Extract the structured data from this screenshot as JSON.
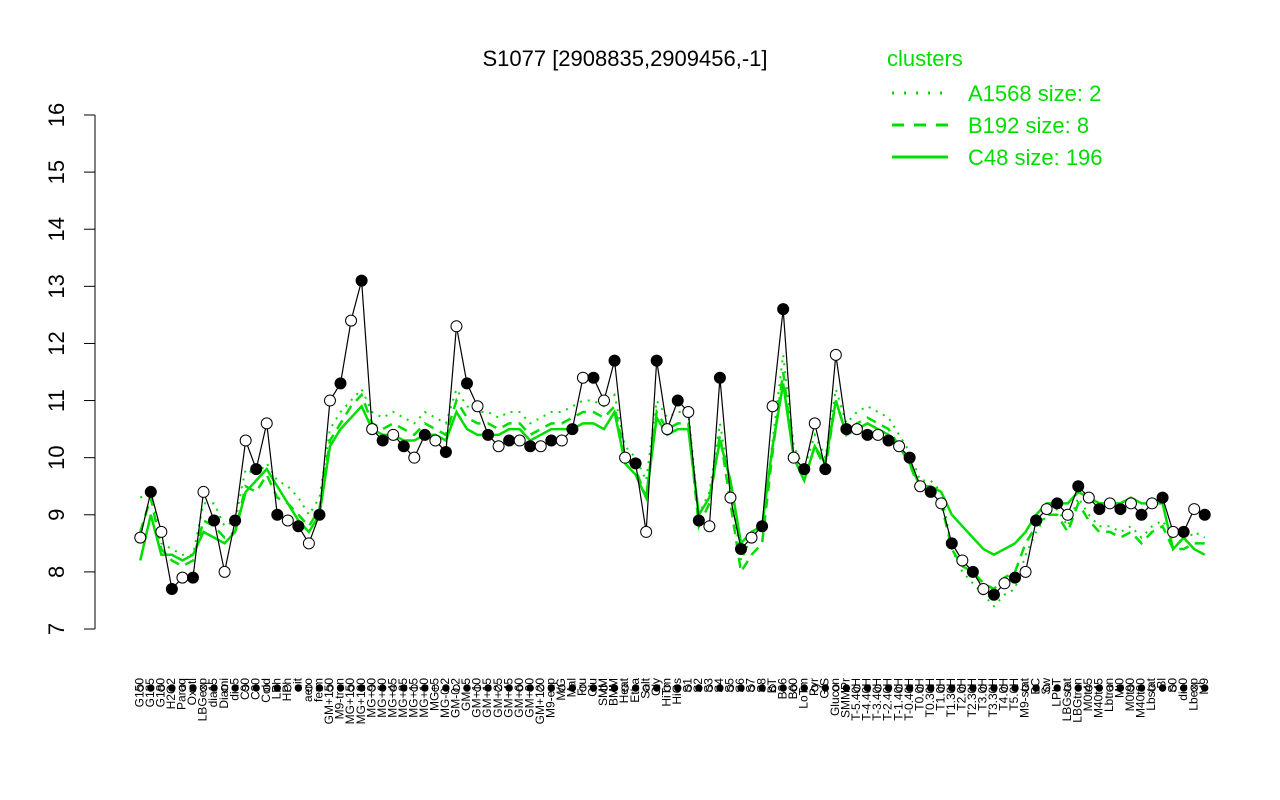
{
  "chart_data": {
    "type": "line",
    "title": "S1077 [2908835,2909456,-1]",
    "xlabel": "",
    "ylabel": "",
    "ylim": [
      7,
      16
    ],
    "yticks": [
      7,
      8,
      9,
      10,
      11,
      12,
      13,
      14,
      15,
      16
    ],
    "grid": false,
    "legend_position": "top-right",
    "legend": {
      "title": "clusters",
      "items": [
        {
          "label": "A1568 size: 2",
          "style": "dotted"
        },
        {
          "label": "B192 size: 8",
          "style": "dashed"
        },
        {
          "label": "C48 size: 196",
          "style": "solid"
        }
      ]
    },
    "colors": {
      "cluster_lines": "#00dd00",
      "points": "#000000",
      "axis": "#000000"
    },
    "x_tick_labels": [
      "G150",
      "G135",
      "G180",
      "H2O2",
      "Paraq",
      "Oxctl",
      "LBGexp",
      "dia15",
      "Diami",
      "dia5",
      "C90",
      "C30",
      "Cold",
      "LPh",
      "HPh",
      "nit",
      "aero",
      "ferm",
      "GM+150",
      "M9-tran",
      "MG+150",
      "MG+120",
      "MG+90",
      "MG+60",
      "MG+45",
      "MG+25",
      "MG+15",
      "MG+10",
      "MG+5",
      "MG-0.2",
      "GM-0.2",
      "GM+5",
      "GM+10",
      "GM+15",
      "GM+25",
      "GM+45",
      "GM+60",
      "GM+90",
      "GM+120",
      "M9-exp",
      "M/G",
      "Mal",
      "Fru",
      "Glu",
      "SMM",
      "BMM",
      "Heat",
      "Etha",
      "Salt",
      "Gly",
      "HiTm",
      "HiOs",
      "S1",
      "S2",
      "S3",
      "S4",
      "S5",
      "S6",
      "S7",
      "S8",
      "BT",
      "B36",
      "B60",
      "LoTm",
      "Pyr",
      "G/S",
      "Glucon",
      "SMMPr",
      "T-5.40H",
      "T-4.40H",
      "T-3.40H",
      "T-2.40H",
      "T-1.40H",
      "T-0.40H",
      "T0.0H",
      "T0.30H",
      "T1.0H",
      "T1.30H",
      "T2.0H",
      "T2.30H",
      "T3.0H",
      "T3.30H",
      "T4.0H",
      "T5.0H",
      "M9-stat",
      "BC",
      "Sw",
      "LPhT",
      "LBGstat",
      "LBGtran",
      "M0t45",
      "M40t45",
      "Lbtran",
      "Mt0",
      "M0t90",
      "M40t90",
      "Lbstat",
      "Bl",
      "S0",
      "dia0",
      "Lbexp",
      "M9"
    ],
    "series": [
      {
        "name": "",
        "values": [
          8.6,
          9.4,
          8.7,
          7.7,
          7.9,
          7.9,
          9.4,
          8.9,
          8.0,
          8.9,
          10.3,
          9.8,
          10.6,
          9.0,
          8.9,
          8.8,
          8.5,
          9.0,
          11.0,
          11.3,
          12.4,
          13.1,
          10.5,
          10.3,
          10.4,
          10.2,
          10.0,
          10.4,
          10.3,
          10.1,
          12.3,
          11.3,
          10.9,
          10.4,
          10.2,
          10.3,
          10.3,
          10.2,
          10.2,
          10.3,
          10.3,
          10.5,
          11.4,
          11.4,
          11.0,
          11.7,
          10.0,
          9.9,
          8.7,
          11.7,
          10.5,
          11.0,
          10.8,
          8.9,
          8.8,
          11.4,
          9.3,
          8.4,
          8.6,
          8.8,
          10.9,
          12.6,
          10.0,
          9.8,
          10.6,
          9.8,
          11.8,
          10.5,
          10.5,
          10.4,
          10.4,
          10.3,
          10.2,
          10.0,
          9.5,
          9.4,
          9.2,
          8.5,
          8.2,
          8.0,
          7.7,
          7.6,
          7.8,
          7.9,
          8.0,
          8.9,
          9.1,
          9.2,
          9.0,
          9.5,
          9.3,
          9.1,
          9.2,
          9.1,
          9.2,
          9.0,
          9.2,
          9.3,
          8.7,
          8.7,
          9.1,
          9.0
        ]
      }
    ],
    "cluster_lines": [
      {
        "name": "A1568 size: 2",
        "values": [
          9.3,
          9.4,
          8.5,
          8.4,
          8.3,
          8.3,
          9.2,
          9.2,
          8.8,
          8.9,
          9.8,
          9.7,
          9.9,
          9.6,
          9.5,
          9.3,
          9.0,
          9.3,
          10.5,
          10.8,
          11.0,
          11.2,
          10.8,
          10.7,
          10.8,
          10.7,
          10.6,
          10.8,
          10.7,
          10.6,
          11.2,
          10.9,
          10.8,
          10.8,
          10.7,
          10.8,
          10.8,
          10.6,
          10.7,
          10.8,
          10.8,
          10.9,
          11.0,
          11.0,
          10.9,
          11.1,
          10.2,
          10.0,
          9.6,
          11.0,
          10.7,
          10.8,
          10.8,
          9.0,
          9.4,
          10.6,
          9.5,
          8.2,
          8.6,
          8.8,
          10.3,
          11.8,
          10.2,
          9.8,
          10.4,
          10.0,
          11.2,
          10.6,
          10.8,
          10.9,
          10.8,
          10.7,
          10.4,
          10.1,
          9.6,
          9.6,
          9.4,
          8.4,
          8.0,
          7.8,
          7.6,
          7.4,
          7.6,
          7.7,
          8.3,
          8.7,
          9.0,
          9.1,
          8.8,
          9.3,
          9.0,
          8.8,
          8.8,
          8.7,
          8.8,
          8.6,
          8.8,
          8.9,
          8.6,
          8.5,
          8.7,
          8.6
        ]
      },
      {
        "name": "B192 size: 8",
        "values": [
          8.7,
          9.3,
          8.4,
          8.2,
          8.1,
          8.2,
          8.9,
          8.8,
          8.6,
          8.7,
          9.5,
          9.4,
          9.7,
          9.3,
          9.2,
          9.0,
          8.8,
          9.1,
          10.3,
          10.6,
          10.9,
          11.1,
          10.6,
          10.5,
          10.6,
          10.5,
          10.4,
          10.6,
          10.5,
          10.4,
          11.0,
          10.7,
          10.6,
          10.6,
          10.5,
          10.6,
          10.6,
          10.4,
          10.5,
          10.6,
          10.6,
          10.7,
          10.8,
          10.8,
          10.7,
          10.9,
          10.0,
          9.8,
          9.3,
          10.8,
          10.5,
          10.6,
          10.6,
          8.8,
          9.2,
          10.4,
          9.2,
          8.0,
          8.3,
          8.5,
          10.1,
          11.5,
          10.0,
          9.6,
          10.2,
          9.8,
          11.0,
          10.4,
          10.6,
          10.7,
          10.6,
          10.5,
          10.2,
          9.9,
          9.4,
          9.4,
          9.2,
          8.4,
          8.1,
          8.0,
          7.8,
          7.7,
          7.9,
          8.0,
          8.5,
          8.8,
          9.0,
          9.0,
          8.7,
          9.2,
          8.9,
          8.7,
          8.7,
          8.6,
          8.7,
          8.5,
          8.7,
          8.8,
          8.4,
          8.4,
          8.5,
          8.5
        ]
      },
      {
        "name": "C48 size: 196",
        "values": [
          8.2,
          9.0,
          8.3,
          8.3,
          8.2,
          8.3,
          8.7,
          8.6,
          8.5,
          8.7,
          9.4,
          9.6,
          9.8,
          9.5,
          9.2,
          8.9,
          8.7,
          9.0,
          10.2,
          10.5,
          10.7,
          10.9,
          10.5,
          10.4,
          10.4,
          10.3,
          10.3,
          10.4,
          10.4,
          10.3,
          10.8,
          10.5,
          10.4,
          10.4,
          10.4,
          10.5,
          10.5,
          10.3,
          10.4,
          10.5,
          10.5,
          10.5,
          10.6,
          10.6,
          10.5,
          10.8,
          9.9,
          9.7,
          9.3,
          10.7,
          10.4,
          10.5,
          10.5,
          9.0,
          9.3,
          10.3,
          9.6,
          8.5,
          8.7,
          8.8,
          10.2,
          11.3,
          10.0,
          9.6,
          10.2,
          9.9,
          11.0,
          10.4,
          10.5,
          10.6,
          10.5,
          10.4,
          10.2,
          9.9,
          9.5,
          9.5,
          9.4,
          9.0,
          8.8,
          8.6,
          8.4,
          8.3,
          8.4,
          8.5,
          8.7,
          9.0,
          9.2,
          9.2,
          9.2,
          9.4,
          9.3,
          9.2,
          9.2,
          9.2,
          9.3,
          9.2,
          9.2,
          9.2,
          8.4,
          8.6,
          8.4,
          8.3
        ]
      }
    ]
  }
}
